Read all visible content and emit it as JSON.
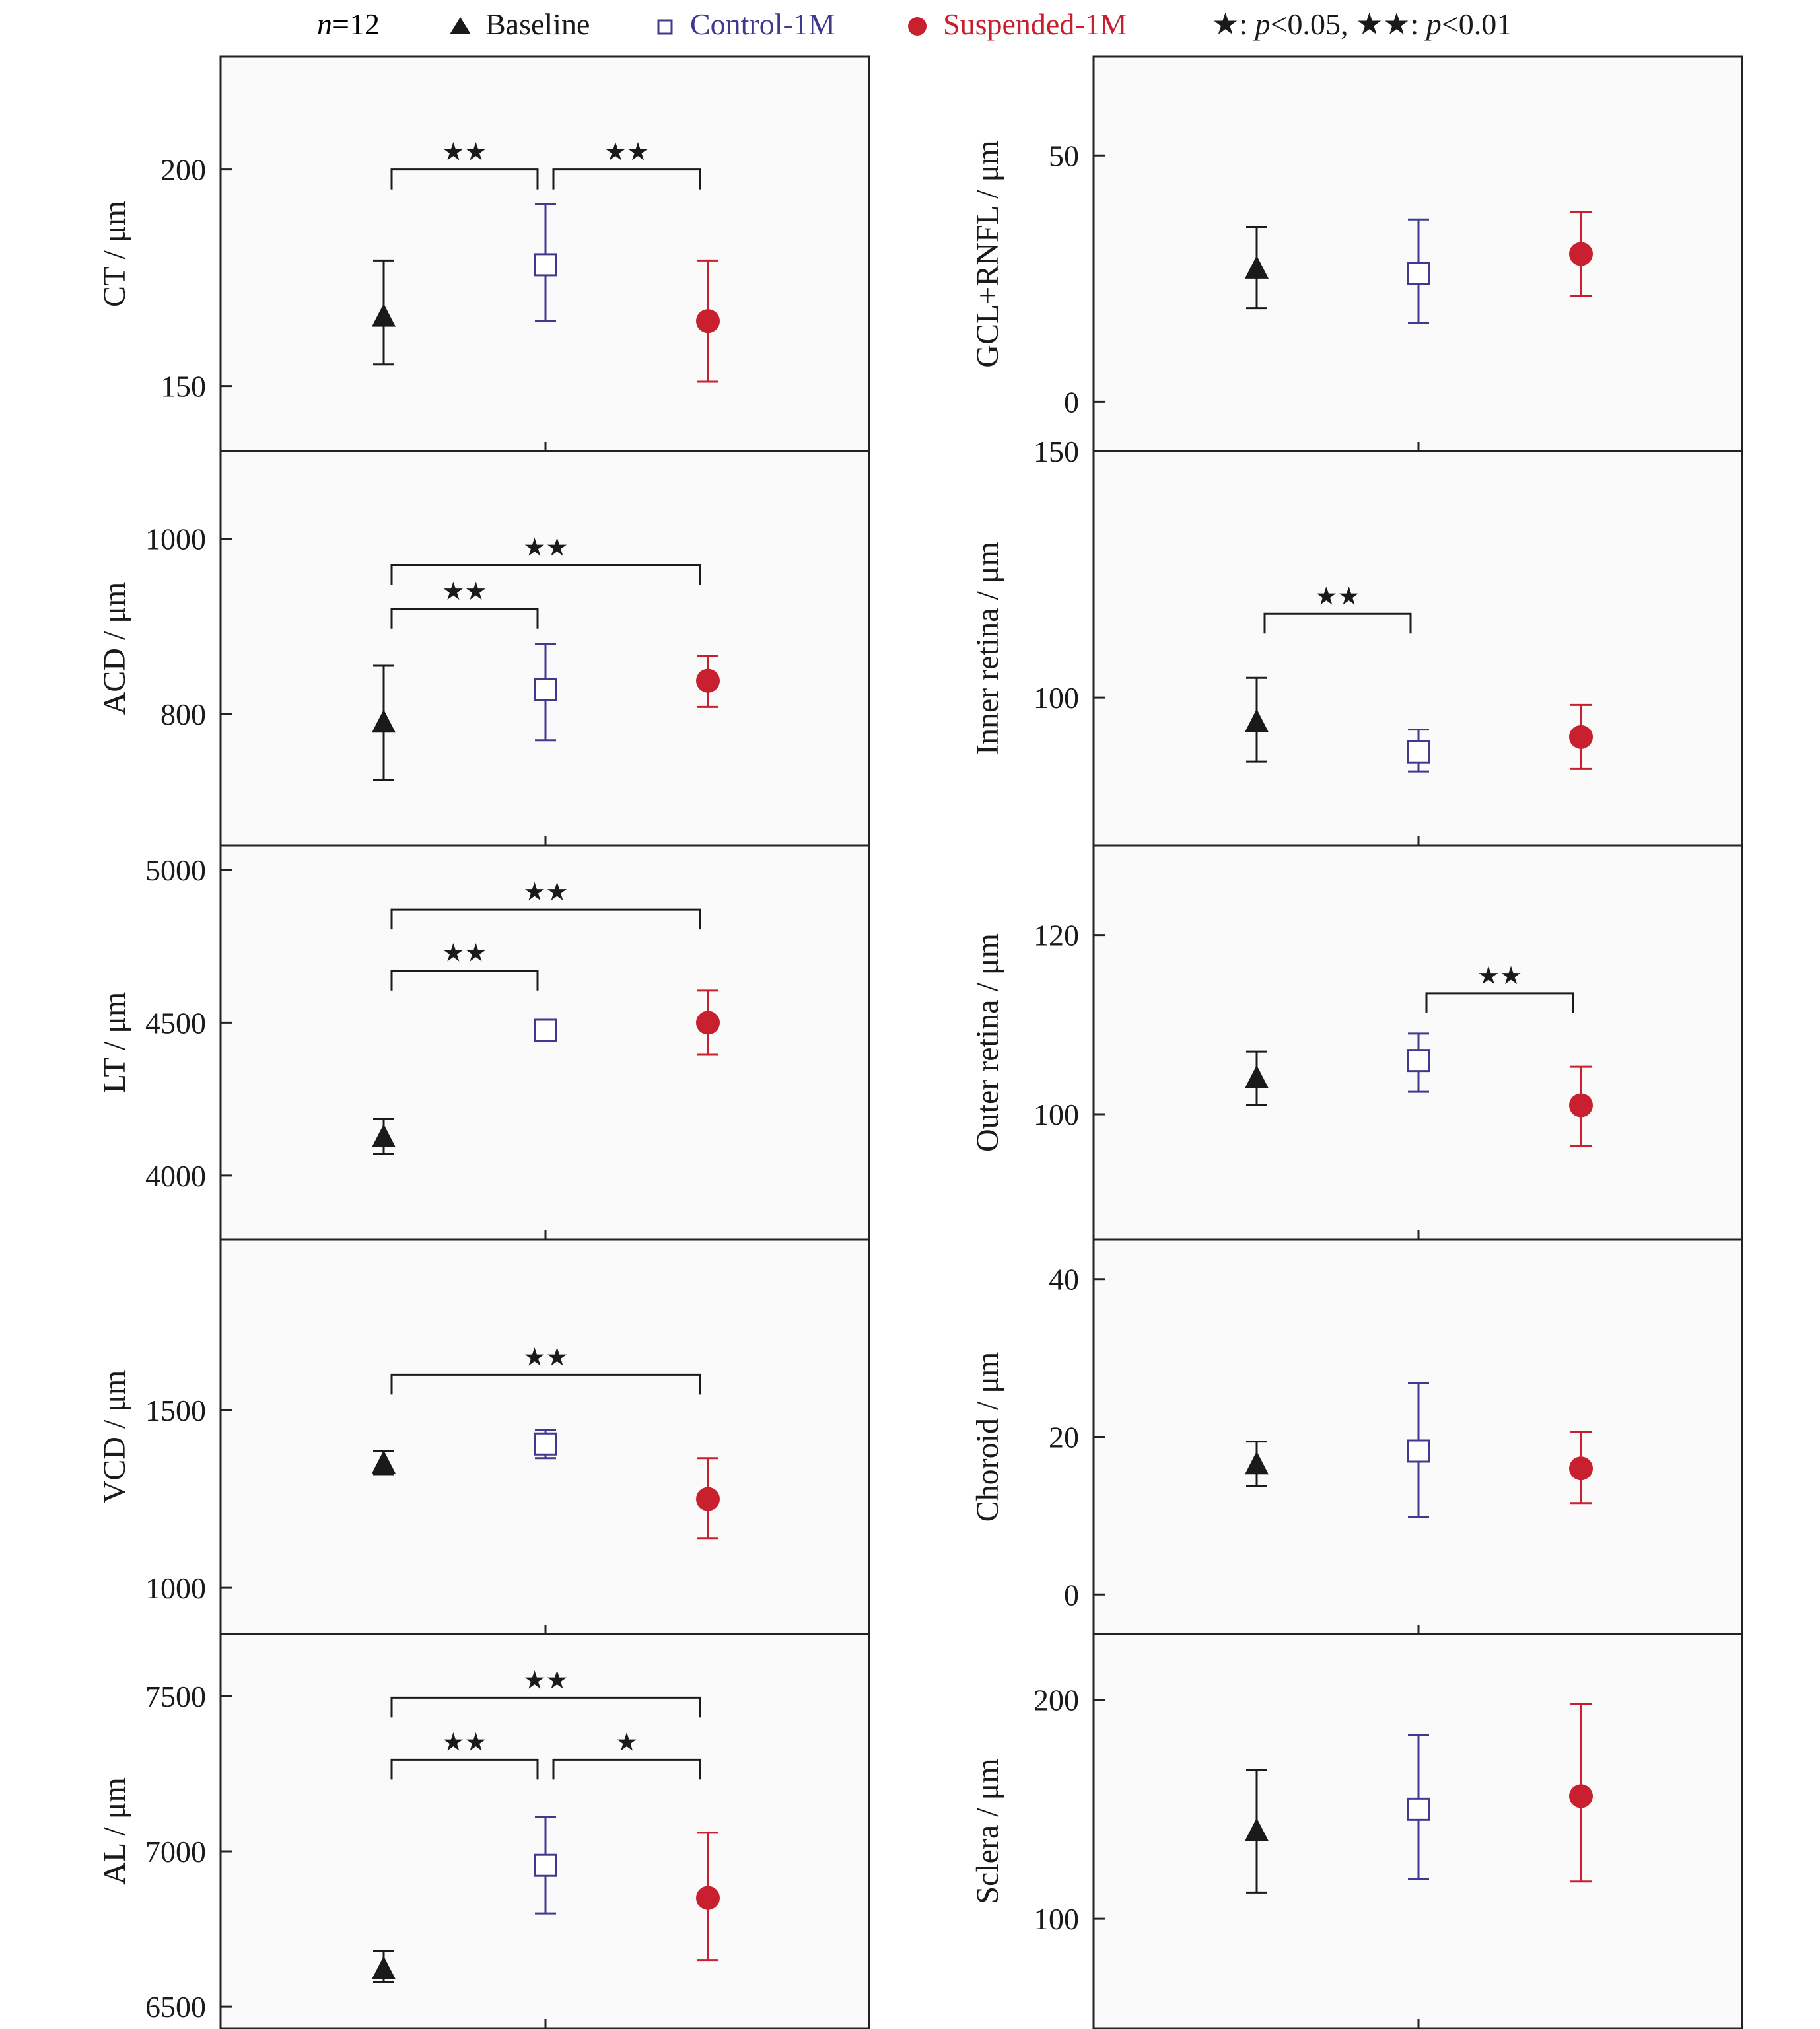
{
  "legend": {
    "n_prefix": "n",
    "n_value": "=12",
    "items": [
      {
        "label": "Baseline",
        "color": "#1a1a1a",
        "marker": "triangle"
      },
      {
        "label": "Control-1M",
        "color": "#3d3a8f",
        "marker": "square"
      },
      {
        "label": "Suspended-1M",
        "color": "#c8202f",
        "marker": "circle"
      }
    ],
    "sig_single_stars": "★",
    "sig_single_text": ": ",
    "sig_single_p": "p",
    "sig_single_value": "<0.05, ",
    "sig_double_stars": "★★",
    "sig_double_text": ": ",
    "sig_double_p": "p",
    "sig_double_value": "<0.01"
  },
  "colors": {
    "baseline": "#1a1a1a",
    "control": "#3d3a8f",
    "suspended": "#c8202f",
    "panel_bg": "#fafafa",
    "axis": "#222222"
  },
  "chart_data": [
    {
      "type": "scatter",
      "ylabel": "CT / μm",
      "ylim": [
        135,
        226
      ],
      "yticks": [
        150,
        200
      ],
      "categories": [
        "Baseline",
        "Control-1M",
        "Suspended-1M"
      ],
      "means": [
        166,
        178,
        165
      ],
      "lower": [
        155,
        165,
        151
      ],
      "upper": [
        179,
        192,
        179
      ],
      "sig": [
        {
          "from": 0,
          "to": 1,
          "label": "★★",
          "y": 200
        },
        {
          "from": 1,
          "to": 2,
          "label": "★★",
          "y": 200
        }
      ]
    },
    {
      "type": "scatter",
      "ylabel": "GCL+RNFL / μm",
      "ylim": [
        -10,
        70
      ],
      "yticks": [
        0,
        50
      ],
      "categories": [
        "Baseline",
        "Control-1M",
        "Suspended-1M"
      ],
      "means": [
        27,
        26,
        30
      ],
      "lower": [
        19,
        16,
        21.5
      ],
      "upper": [
        35.5,
        37,
        38.5
      ],
      "sig": []
    },
    {
      "type": "scatter",
      "ylabel": "ACD / μm",
      "ylim": [
        650,
        1100
      ],
      "yticks": [
        800,
        1000
      ],
      "categories": [
        "Baseline",
        "Control-1M",
        "Suspended-1M"
      ],
      "means": [
        790,
        828,
        838
      ],
      "lower": [
        725,
        770,
        808
      ],
      "upper": [
        855,
        880,
        866
      ],
      "sig": [
        {
          "from": 0,
          "to": 1,
          "label": "★★",
          "y": 920
        },
        {
          "from": 0,
          "to": 2,
          "label": "★★",
          "y": 970
        }
      ]
    },
    {
      "type": "scatter",
      "ylabel": "Inner retina / μm",
      "ylim": [
        70,
        150
      ],
      "yticks": [
        100,
        150
      ],
      "categories": [
        "Baseline",
        "Control-1M",
        "Suspended-1M"
      ],
      "means": [
        95,
        89,
        92
      ],
      "lower": [
        87,
        85,
        85.5
      ],
      "upper": [
        104,
        93.5,
        98.5
      ],
      "sig": [
        {
          "from": 0,
          "to": 1,
          "label": "★★",
          "y": 117
        }
      ]
    },
    {
      "type": "scatter",
      "ylabel": "LT / μm",
      "ylim": [
        3790,
        5080
      ],
      "yticks": [
        4000,
        4500,
        5000
      ],
      "categories": [
        "Baseline",
        "Control-1M",
        "Suspended-1M"
      ],
      "means": [
        4125,
        4475,
        4500
      ],
      "lower": [
        4070,
        4445,
        4395
      ],
      "upper": [
        4185,
        4505,
        4605
      ],
      "sig": [
        {
          "from": 0,
          "to": 1,
          "label": "★★",
          "y": 4670
        },
        {
          "from": 0,
          "to": 2,
          "label": "★★",
          "y": 4870
        }
      ]
    },
    {
      "type": "scatter",
      "ylabel": "Outer retina / μm",
      "ylim": [
        86,
        130
      ],
      "yticks": [
        100,
        120
      ],
      "categories": [
        "Baseline",
        "Control-1M",
        "Suspended-1M"
      ],
      "means": [
        104,
        106,
        101
      ],
      "lower": [
        101,
        102.5,
        96.5
      ],
      "upper": [
        107,
        109,
        105.3
      ],
      "sig": [
        {
          "from": 1,
          "to": 2,
          "label": "★★",
          "y": 113.5
        }
      ]
    },
    {
      "type": "scatter",
      "ylabel": "VCD / μm",
      "ylim": [
        870,
        1980
      ],
      "yticks": [
        1000,
        1500
      ],
      "categories": [
        "Baseline",
        "Control-1M",
        "Suspended-1M"
      ],
      "means": [
        1350,
        1405,
        1250
      ],
      "lower": [
        1320,
        1365,
        1140
      ],
      "upper": [
        1385,
        1445,
        1365
      ],
      "sig": [
        {
          "from": 0,
          "to": 2,
          "label": "★★",
          "y": 1600
        }
      ]
    },
    {
      "type": "scatter",
      "ylabel": "Choroid / μm",
      "ylim": [
        -5,
        45
      ],
      "yticks": [
        0,
        20,
        40
      ],
      "categories": [
        "Baseline",
        "Control-1M",
        "Suspended-1M"
      ],
      "means": [
        16.5,
        18.2,
        16
      ],
      "lower": [
        13.8,
        9.8,
        11.6
      ],
      "upper": [
        19.4,
        26.8,
        20.6
      ],
      "sig": []
    },
    {
      "type": "scatter",
      "ylabel": "AL / μm",
      "ylim": [
        6430,
        7700
      ],
      "yticks": [
        6500,
        7000,
        7500
      ],
      "categories": [
        "Baseline",
        "Control-1M",
        "Suspended-1M"
      ],
      "means": [
        6620,
        6955,
        6850
      ],
      "lower": [
        6580,
        6800,
        6650
      ],
      "upper": [
        6680,
        7110,
        7060
      ],
      "sig": [
        {
          "from": 0,
          "to": 1,
          "label": "★★",
          "y": 7295
        },
        {
          "from": 1,
          "to": 2,
          "label": "★",
          "y": 7295
        },
        {
          "from": 0,
          "to": 2,
          "label": "★★",
          "y": 7495
        }
      ]
    },
    {
      "type": "scatter",
      "ylabel": "Sclera / μm",
      "ylim": [
        50,
        230
      ],
      "yticks": [
        100,
        200
      ],
      "categories": [
        "Baseline",
        "Control-1M",
        "Suspended-1M"
      ],
      "means": [
        140,
        150,
        156
      ],
      "lower": [
        112,
        118,
        117
      ],
      "upper": [
        168,
        184,
        198
      ],
      "sig": []
    }
  ]
}
